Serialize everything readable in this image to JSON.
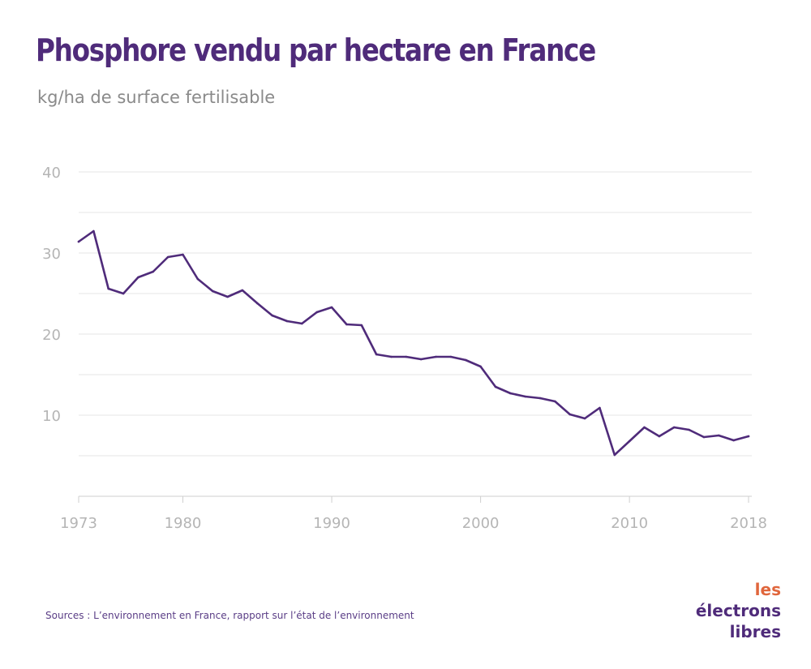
{
  "title": "Phosphore vendu par hectare en France",
  "subtitle": "kg/ha de surface fertilisable",
  "source": "Sources : L’environnement en France, rapport sur l’état de l’environnement",
  "logo": {
    "word1": "les",
    "word2": "électrons",
    "word3": "libres"
  },
  "colors": {
    "line": "#4f2b7a",
    "title": "#4f2b7a",
    "grid": "#e6e6e6",
    "ticks": "#b5b5b5",
    "accent": "#e0663c"
  },
  "chart_data": {
    "type": "line",
    "title": "Phosphore vendu par hectare en France",
    "subtitle": "kg/ha de surface fertilisable",
    "xlabel": "",
    "ylabel": "",
    "xlim": [
      1973,
      2018
    ],
    "ylim": [
      0,
      40
    ],
    "x_ticks": [
      1973,
      1980,
      1990,
      2000,
      2010,
      2018
    ],
    "y_ticks": [
      10,
      20,
      30,
      40
    ],
    "grid": true,
    "series": [
      {
        "x": [
          1973,
          1974,
          1975,
          1976,
          1977,
          1978,
          1979,
          1980,
          1981,
          1982,
          1983,
          1984,
          1985,
          1986,
          1987,
          1988,
          1989,
          1990,
          1991,
          1992,
          1993,
          1994,
          1995,
          1996,
          1997,
          1998,
          1999,
          2000,
          2001,
          2002,
          2003,
          2004,
          2005,
          2006,
          2007,
          2008,
          2009,
          2010,
          2011,
          2012,
          2013,
          2014,
          2015,
          2016,
          2017,
          2018
        ],
        "values": [
          31.4,
          32.7,
          25.6,
          25.0,
          27.0,
          27.7,
          29.5,
          29.8,
          26.8,
          25.3,
          24.6,
          25.4,
          23.8,
          22.3,
          21.6,
          21.3,
          22.7,
          23.3,
          21.2,
          21.1,
          17.5,
          17.2,
          17.2,
          16.9,
          17.2,
          17.2,
          16.8,
          16.0,
          13.5,
          12.7,
          12.3,
          12.1,
          11.7,
          10.1,
          9.6,
          10.9,
          5.1,
          6.8,
          8.5,
          7.4,
          8.5,
          8.2,
          7.3,
          7.5,
          6.9,
          7.4
        ]
      }
    ]
  }
}
